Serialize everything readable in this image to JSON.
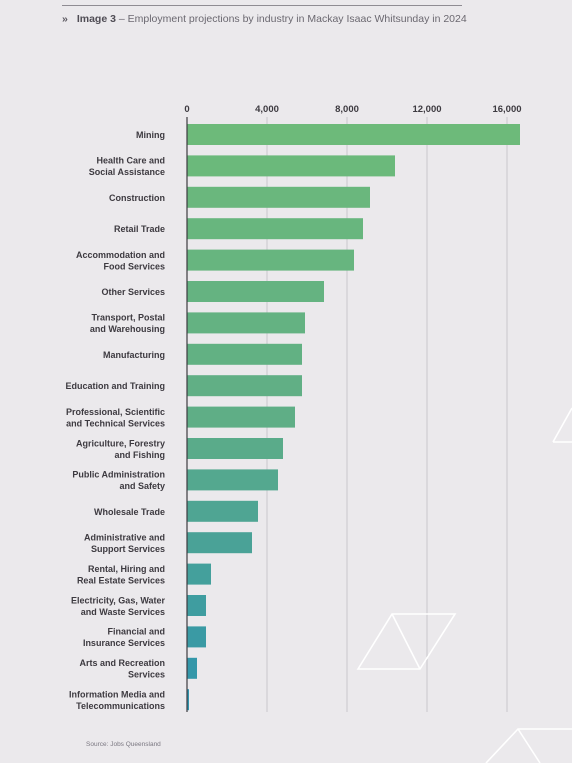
{
  "caption": {
    "marker": "»",
    "label": "Image 3",
    "text": " – Employment projections by industry in Mackay Isaac Whitsunday in 2024"
  },
  "source": "Source: Jobs Queensland",
  "colors": {
    "bar_top": "#6dba7a",
    "bar_mid": "#5fae86",
    "bar_bottom": "#2f94ad",
    "grid": "#c9c6cc",
    "axis": "#3d3a40"
  },
  "chart_data": {
    "type": "bar",
    "orientation": "horizontal",
    "title": "",
    "xlabel": "",
    "ylabel": "",
    "xlim": [
      0,
      16800
    ],
    "xticks": [
      0,
      4000,
      8000,
      12000,
      16000
    ],
    "xtick_labels": [
      "0",
      "4,000",
      "8,000",
      "12,000",
      "16,000"
    ],
    "grid": true,
    "categories": [
      "Mining",
      "Health Care and\nSocial Assistance",
      "Construction",
      "Retail Trade",
      "Accommodation and\nFood Services",
      "Other Services",
      "Transport, Postal\nand Warehousing",
      "Manufacturing",
      "Education and Training",
      "Professional, Scientific\nand Technical Services",
      "Agriculture, Forestry\nand Fishing",
      "Public Administration\nand Safety",
      "Wholesale Trade",
      "Administrative and\nSupport Services",
      "Rental, Hiring and\nReal Estate Services",
      "Electricity, Gas, Water\nand Waste Services",
      "Financial and\nInsurance Services",
      "Arts and Recreation\nServices",
      "Information Media and\nTelecommunications"
    ],
    "values": [
      16650,
      10400,
      9150,
      8800,
      8350,
      6850,
      5900,
      5750,
      5750,
      5400,
      4800,
      4550,
      3550,
      3250,
      1200,
      950,
      950,
      500,
      100
    ]
  }
}
